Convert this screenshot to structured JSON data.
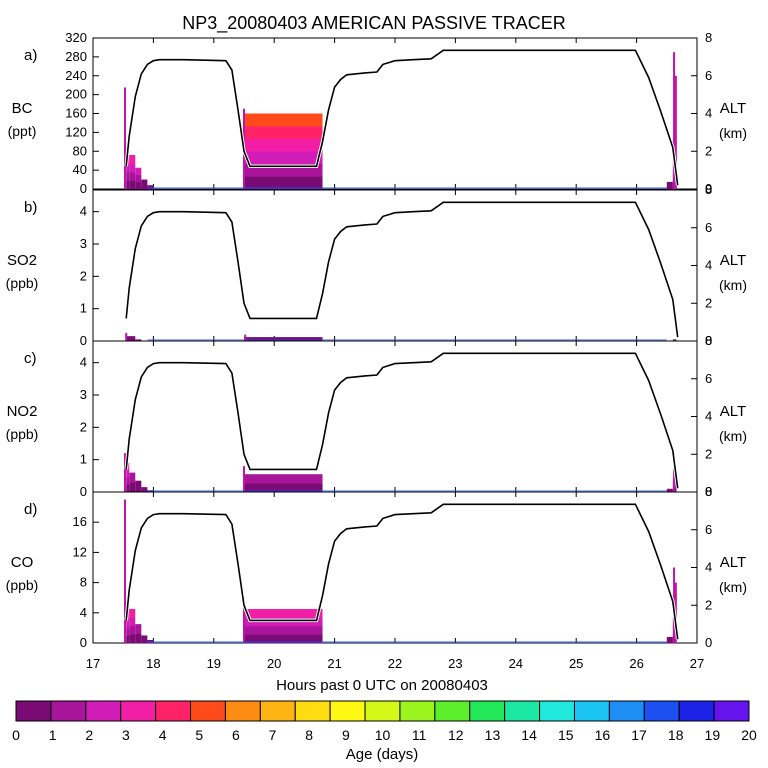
{
  "chart_data": {
    "type": "line",
    "title": "NP3_20080403 AMERICAN PASSIVE TRACER",
    "xlabel": "Hours past 0 UTC on 20080403",
    "xlim": [
      17,
      27
    ],
    "x_ticks": [
      "17",
      "18",
      "19",
      "20",
      "21",
      "22",
      "23",
      "24",
      "25",
      "26",
      "27"
    ],
    "altitude": {
      "label": "ALT",
      "unit": "(km)",
      "ylim": [
        0,
        8
      ],
      "ticks": [
        "0",
        "2",
        "4",
        "6",
        "8"
      ],
      "x": [
        17.55,
        17.6,
        17.7,
        17.8,
        17.9,
        18.0,
        18.1,
        18.5,
        19.2,
        19.3,
        19.4,
        19.5,
        19.6,
        20.7,
        20.8,
        20.9,
        21.0,
        21.1,
        21.2,
        21.5,
        21.7,
        21.8,
        22.0,
        22.3,
        22.6,
        22.8,
        25.98,
        26.2,
        26.4,
        26.6,
        26.68
      ],
      "y": [
        1.2,
        2.8,
        4.9,
        6.1,
        6.6,
        6.8,
        6.85,
        6.85,
        6.8,
        6.3,
        4.2,
        2.0,
        1.2,
        1.2,
        2.5,
        4.2,
        5.4,
        5.8,
        6.05,
        6.15,
        6.2,
        6.6,
        6.8,
        6.85,
        6.9,
        7.35,
        7.35,
        5.9,
        4.1,
        2.2,
        0.2
      ]
    },
    "panels": [
      {
        "tag": "a)",
        "species": "BC",
        "unit": "(ppt)",
        "ylim": [
          0,
          320
        ],
        "ticks": [
          "0",
          "40",
          "80",
          "120",
          "160",
          "200",
          "240",
          "280",
          "320"
        ],
        "spikes": [
          [
            17.53,
            215
          ],
          [
            19.5,
            170
          ],
          [
            26.62,
            290
          ],
          [
            26.65,
            240
          ]
        ],
        "plume1": [
          [
            17.55,
            75
          ],
          [
            17.6,
            72
          ],
          [
            17.7,
            45
          ],
          [
            17.8,
            20
          ],
          [
            17.9,
            8
          ]
        ],
        "plume2": [
          [
            19.5,
            160
          ],
          [
            20.8,
            160
          ]
        ],
        "plume3": [
          [
            26.5,
            15
          ],
          [
            26.6,
            60
          ]
        ]
      },
      {
        "tag": "b)",
        "species": "SO2",
        "unit": "(ppb)",
        "ylim": [
          0,
          4.67
        ],
        "ticks": [
          "0",
          "1",
          "2",
          "3",
          "4"
        ],
        "spikes": [
          [
            17.55,
            0.25
          ],
          [
            19.52,
            0.2
          ]
        ],
        "plume1": [
          [
            17.55,
            0.15
          ],
          [
            17.7,
            0.05
          ]
        ],
        "plume2": [
          [
            19.5,
            0.12
          ],
          [
            20.8,
            0.12
          ]
        ],
        "plume3": [
          [
            26.6,
            0.05
          ]
        ]
      },
      {
        "tag": "c)",
        "species": "NO2",
        "unit": "(ppb)",
        "ylim": [
          0,
          4.67
        ],
        "ticks": [
          "0",
          "1",
          "2",
          "3",
          "4"
        ],
        "spikes": [
          [
            17.53,
            1.2
          ],
          [
            19.5,
            0.8
          ],
          [
            26.62,
            0.7
          ]
        ],
        "plume1": [
          [
            17.55,
            0.9
          ],
          [
            17.6,
            0.6
          ],
          [
            17.7,
            0.35
          ],
          [
            17.8,
            0.15
          ],
          [
            17.9,
            0.05
          ]
        ],
        "plume2": [
          [
            19.5,
            0.55
          ],
          [
            20.8,
            0.55
          ]
        ],
        "plume3": [
          [
            26.5,
            0.1
          ],
          [
            26.6,
            0.4
          ]
        ]
      },
      {
        "tag": "d)",
        "species": "CO",
        "unit": "(ppb)",
        "ylim": [
          0,
          20
        ],
        "ticks": [
          "0",
          "4",
          "8",
          "12",
          "16"
        ],
        "spikes": [
          [
            17.53,
            19
          ],
          [
            19.5,
            6
          ],
          [
            26.62,
            10
          ],
          [
            26.65,
            8
          ]
        ],
        "plume1": [
          [
            17.55,
            4.8
          ],
          [
            17.6,
            4.5
          ],
          [
            17.7,
            2.5
          ],
          [
            17.8,
            1.0
          ],
          [
            17.9,
            0.4
          ]
        ],
        "plume2": [
          [
            19.5,
            4.5
          ],
          [
            20.8,
            4.5
          ]
        ],
        "plume3": [
          [
            26.5,
            0.8
          ],
          [
            26.6,
            3.5
          ]
        ]
      }
    ],
    "colorbar": {
      "label": "Age (days)",
      "ticks": [
        "0",
        "1",
        "2",
        "3",
        "4",
        "5",
        "6",
        "7",
        "8",
        "9",
        "10",
        "11",
        "12",
        "13",
        "14",
        "15",
        "16",
        "17",
        "18",
        "19",
        "20"
      ],
      "colors": [
        "#7a0a74",
        "#a8149a",
        "#d21cb8",
        "#f21ea6",
        "#ff2266",
        "#ff4a1a",
        "#ff8c12",
        "#ffb414",
        "#ffdc12",
        "#fff812",
        "#d4f818",
        "#9cf41e",
        "#5cf02c",
        "#22e85a",
        "#1ce8a4",
        "#20e8dc",
        "#1cc4f4",
        "#1c8ef4",
        "#1c50f0",
        "#1c22e6",
        "#6614ee"
      ]
    }
  }
}
